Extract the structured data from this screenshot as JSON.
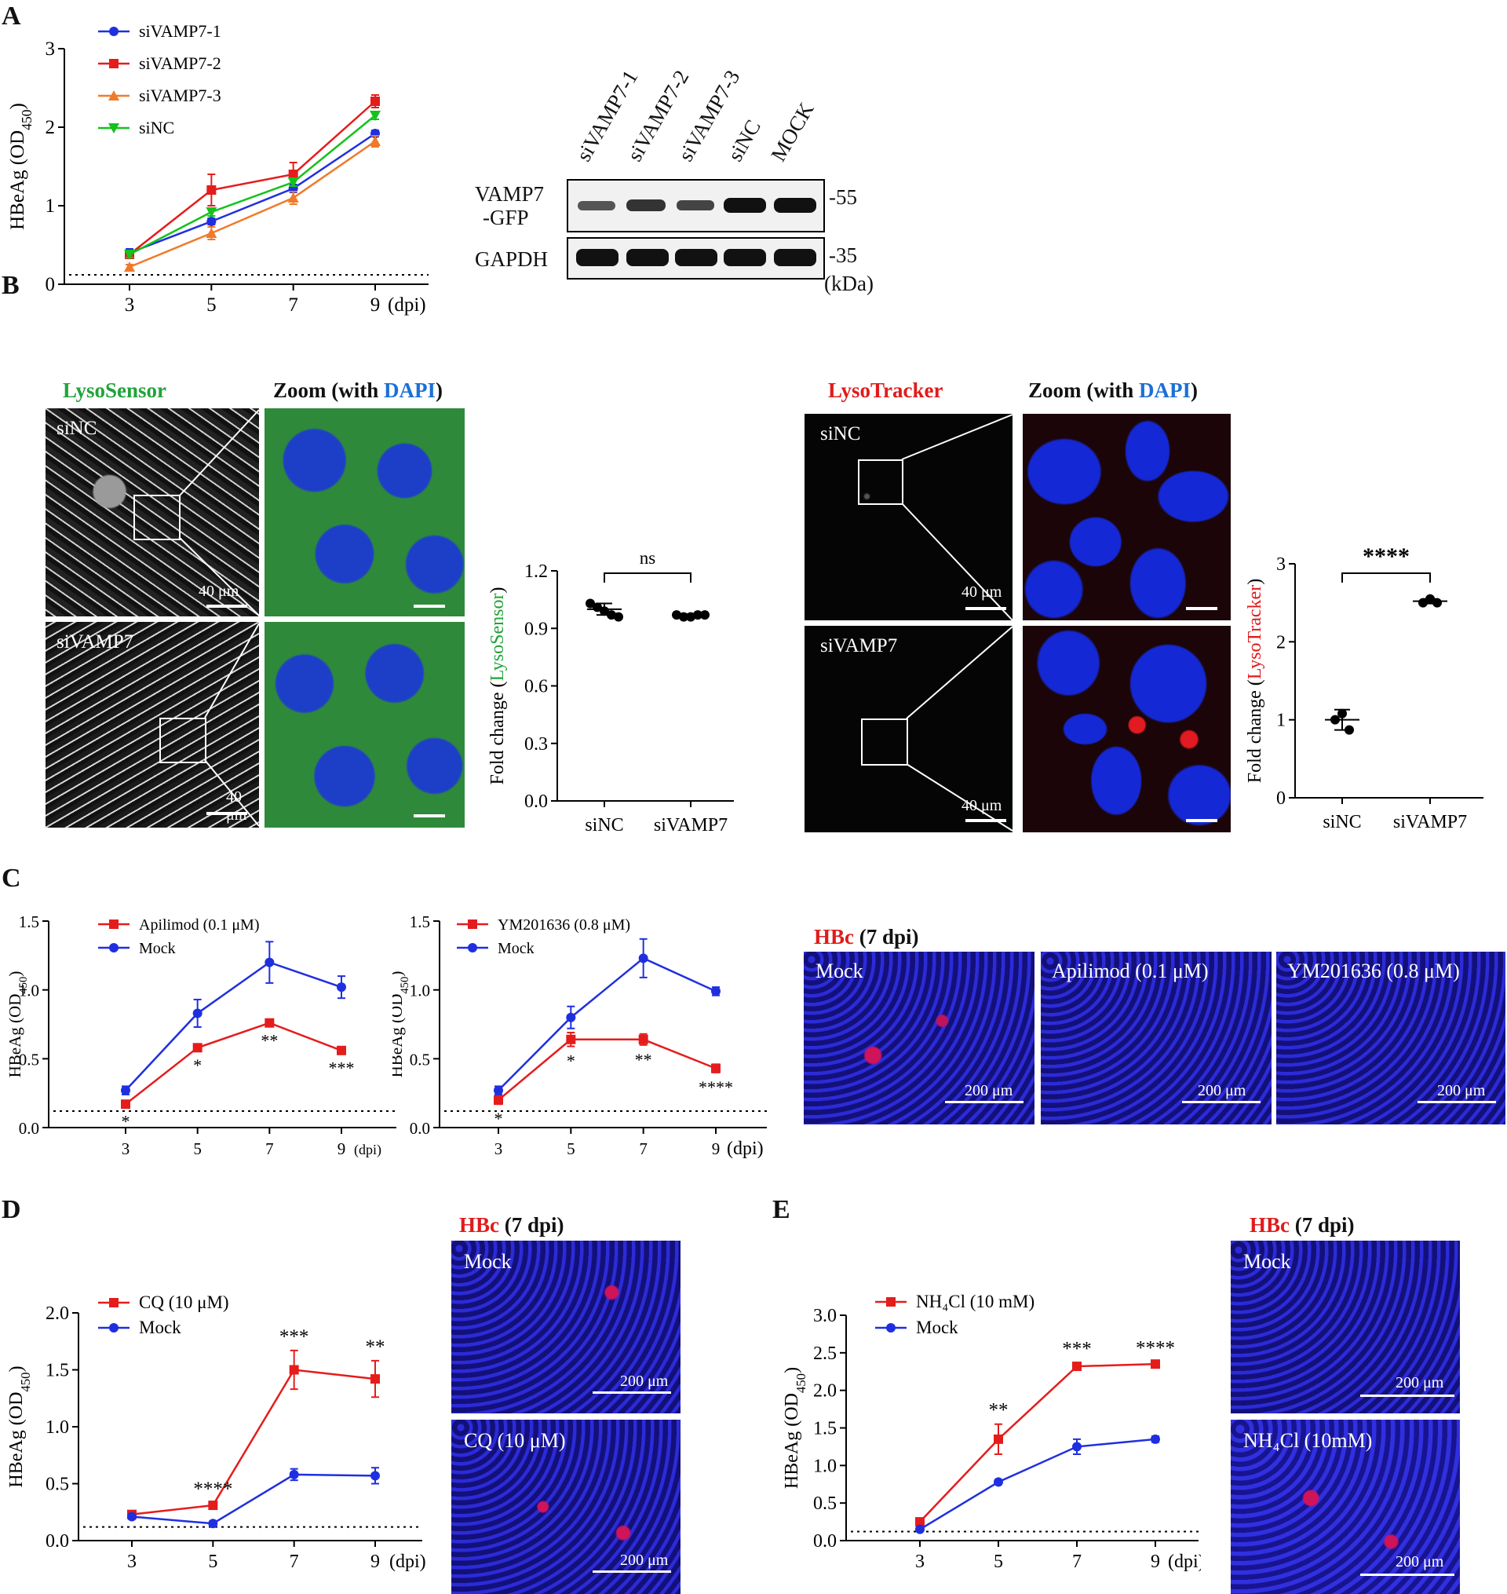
{
  "panels": {
    "a": "A",
    "b": "B",
    "c": "C",
    "d": "D",
    "e": "E"
  },
  "colors": {
    "blue": "#1f2fe0",
    "red": "#e51c1c",
    "orange": "#f07a2a",
    "green": "#14c21d",
    "lysosensor": "#21a33a",
    "lysotracker": "#e01b1b",
    "dapi": "#1c6fd6"
  },
  "blot": {
    "lanes": [
      "siVAMP7-1",
      "siVAMP7-2",
      "siVAMP7-3",
      "siNC",
      "MOCK"
    ],
    "row1_label_a": "VAMP7",
    "row1_label_b": "-GFP",
    "row2_label": "GAPDH",
    "mw1": "-55",
    "mw2": "-35",
    "unit": "(kDa)"
  },
  "micro_b": {
    "lysosensor_title": "LysoSensor",
    "lysotracker_title": "LysoTracker",
    "zoom_prefix": "Zoom (with ",
    "zoom_dapi": "DAPI",
    "zoom_suffix": ")",
    "label_sinc": "siNC",
    "label_sivamp7": "siVAMP7",
    "scale": "40 μm"
  },
  "micro_c": {
    "title_hbc": "HBc",
    "title_rest": " (7 dpi)",
    "labels": [
      "Mock",
      "Apilimod (0.1 μM)",
      "YM201636 (0.8 μM)"
    ],
    "scale": "200 μm"
  },
  "micro_d": {
    "title_hbc": "HBc",
    "title_rest": " (7 dpi)",
    "labels": [
      "Mock",
      "CQ (10 μM)"
    ],
    "scale": "200 μm"
  },
  "micro_e": {
    "title_hbc": "HBc",
    "title_rest": " (7 dpi)",
    "labels": [
      "Mock",
      "NH₄Cl (10mM)"
    ],
    "scale": "200 μm"
  },
  "chart_data": [
    {
      "id": "A",
      "type": "line",
      "ylabel": "HBeAg (OD450)",
      "x_unit": "(dpi)",
      "x": [
        3,
        5,
        7,
        9
      ],
      "ylim": [
        0,
        3
      ],
      "yticks": [
        0,
        1,
        2,
        3
      ],
      "cutoff": 0.12,
      "series": [
        {
          "name": "siVAMP7-1",
          "color": "#1f2fe0",
          "marker": "circle",
          "values": [
            0.4,
            0.8,
            1.22,
            1.92
          ],
          "err": [
            0.05,
            0.04,
            0.05,
            0.04
          ]
        },
        {
          "name": "siVAMP7-2",
          "color": "#e51c1c",
          "marker": "square",
          "values": [
            0.38,
            1.2,
            1.4,
            2.33
          ],
          "err": [
            0.04,
            0.2,
            0.15,
            0.08
          ]
        },
        {
          "name": "siVAMP7-3",
          "color": "#f07a2a",
          "marker": "triangle-up",
          "values": [
            0.22,
            0.65,
            1.1,
            1.82
          ],
          "err": [
            0.03,
            0.08,
            0.08,
            0.07
          ]
        },
        {
          "name": "siNC",
          "color": "#14c21d",
          "marker": "triangle-down",
          "values": [
            0.38,
            0.92,
            1.3,
            2.15
          ],
          "err": [
            0.04,
            0.05,
            0.05,
            0.05
          ]
        }
      ]
    },
    {
      "id": "B-left",
      "type": "scatter",
      "ylabel_prefix": "Fold change (",
      "ylabel_term": "LysoSensor",
      "ylabel_suffix": ")",
      "categories": [
        "siNC",
        "siVAMP7"
      ],
      "ylim": [
        0,
        1.2
      ],
      "yticks": [
        0.0,
        0.3,
        0.6,
        0.9,
        1.2
      ],
      "points": [
        [
          1.03,
          1.01,
          0.99,
          0.97,
          0.96
        ],
        [
          0.97,
          0.96,
          0.96,
          0.97,
          0.97
        ]
      ],
      "means": [
        1.0,
        0.965
      ],
      "sd": [
        0.03,
        0.01
      ],
      "marker": "circle",
      "annotation": "ns"
    },
    {
      "id": "B-right",
      "type": "scatter",
      "ylabel_prefix": "Fold change (",
      "ylabel_term": "LysoTracker",
      "ylabel_suffix": ")",
      "categories": [
        "siNC",
        "siVAMP7"
      ],
      "ylim": [
        0,
        3
      ],
      "yticks": [
        0,
        1,
        2,
        3
      ],
      "points": [
        [
          1.0,
          1.08,
          0.87
        ],
        [
          2.5,
          2.55,
          2.5
        ]
      ],
      "means": [
        1.0,
        2.52
      ],
      "sd": [
        0.13,
        0.03
      ],
      "marker": "circle",
      "annotation": "****"
    },
    {
      "id": "C-left",
      "type": "line",
      "ylabel": "HBeAg (OD450)",
      "x_unit": "(dpi)",
      "x": [
        3,
        5,
        7,
        9
      ],
      "ylim": [
        0,
        1.5
      ],
      "yticks": [
        0.0,
        0.5,
        1.0,
        1.5
      ],
      "cutoff": 0.12,
      "series": [
        {
          "name": "Apilimod (0.1 μM)",
          "color": "#e51c1c",
          "marker": "square",
          "values": [
            0.17,
            0.58,
            0.76,
            0.56
          ],
          "err": [
            0.02,
            0.02,
            0.02,
            0.02
          ]
        },
        {
          "name": "Mock",
          "color": "#1f2fe0",
          "marker": "circle",
          "values": [
            0.27,
            0.83,
            1.2,
            1.02
          ],
          "err": [
            0.03,
            0.1,
            0.15,
            0.08
          ]
        }
      ],
      "annotations": [
        "*",
        "*",
        "**",
        "***"
      ]
    },
    {
      "id": "C-right",
      "type": "line",
      "ylabel": "HBeAg (OD450)",
      "x_unit": "(dpi)",
      "x": [
        3,
        5,
        7,
        9
      ],
      "ylim": [
        0,
        1.5
      ],
      "yticks": [
        0.0,
        0.5,
        1.0,
        1.5
      ],
      "cutoff": 0.12,
      "series": [
        {
          "name": "YM201636 (0.8 μM)",
          "color": "#e51c1c",
          "marker": "square",
          "values": [
            0.2,
            0.64,
            0.64,
            0.43
          ],
          "err": [
            0.03,
            0.05,
            0.04,
            0.03
          ]
        },
        {
          "name": "Mock",
          "color": "#1f2fe0",
          "marker": "circle",
          "values": [
            0.27,
            0.8,
            1.23,
            0.99
          ],
          "err": [
            0.03,
            0.08,
            0.14,
            0.03
          ]
        }
      ],
      "annotations": [
        "*",
        "*",
        "**",
        "****"
      ]
    },
    {
      "id": "D",
      "type": "line",
      "ylabel": "HBeAg (OD450)",
      "x_unit": "(dpi)",
      "x": [
        3,
        5,
        7,
        9
      ],
      "ylim": [
        0,
        2.0
      ],
      "yticks": [
        0.0,
        0.5,
        1.0,
        1.5,
        2.0
      ],
      "cutoff": 0.12,
      "series": [
        {
          "name": "CQ (10 μM)",
          "color": "#e51c1c",
          "marker": "square",
          "values": [
            0.23,
            0.31,
            1.5,
            1.42
          ],
          "err": [
            0.02,
            0.02,
            0.17,
            0.16
          ]
        },
        {
          "name": "Mock",
          "color": "#1f2fe0",
          "marker": "circle",
          "values": [
            0.21,
            0.15,
            0.58,
            0.57
          ],
          "err": [
            0.02,
            0.02,
            0.05,
            0.07
          ]
        }
      ],
      "annotations": [
        "",
        "****",
        "***",
        "**"
      ]
    },
    {
      "id": "E",
      "type": "line",
      "ylabel": "HBeAg (OD450)",
      "x_unit": "(dpi)",
      "x": [
        3,
        5,
        7,
        9
      ],
      "ylim": [
        0,
        3.0
      ],
      "yticks": [
        0.0,
        0.5,
        1.0,
        1.5,
        2.0,
        2.5,
        3.0
      ],
      "cutoff": 0.12,
      "series": [
        {
          "name": "NH₄Cl (10 mM)",
          "color": "#e51c1c",
          "marker": "square",
          "values": [
            0.25,
            1.35,
            2.32,
            2.35
          ],
          "err": [
            0.03,
            0.2,
            0.05,
            0.03
          ]
        },
        {
          "name": "Mock",
          "color": "#1f2fe0",
          "marker": "circle",
          "values": [
            0.15,
            0.78,
            1.25,
            1.35
          ],
          "err": [
            0.02,
            0.03,
            0.1,
            0.04
          ]
        }
      ],
      "annotations": [
        "",
        "**",
        "***",
        "****"
      ]
    }
  ]
}
